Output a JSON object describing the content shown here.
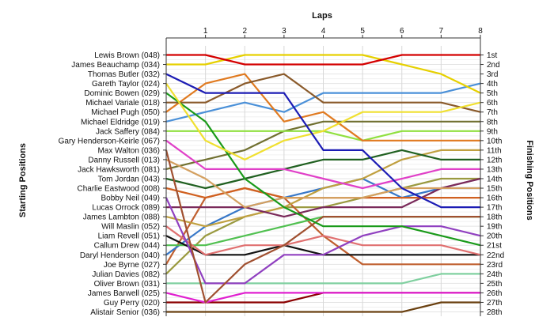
{
  "chart_data": {
    "type": "line",
    "title": "",
    "xlabel": "Laps",
    "ylabel_left": "Starting Positions",
    "ylabel_right": "Finishing Positions",
    "x": [
      0,
      1,
      2,
      3,
      4,
      5,
      6,
      7,
      8
    ],
    "x_tick_labels": [
      "1",
      "2",
      "3",
      "4",
      "5",
      "6",
      "7",
      "8"
    ],
    "finish_labels": [
      "1st",
      "2nd",
      "3rd",
      "4th",
      "5th",
      "6th",
      "7th",
      "8th",
      "9th",
      "10th",
      "11th",
      "12th",
      "13th",
      "14th",
      "15th",
      "16th",
      "17th",
      "18th",
      "19th",
      "20th",
      "21st",
      "22nd",
      "23rd",
      "24th",
      "25th",
      "26th",
      "27th",
      "28th"
    ],
    "y_direction": "position 1 at top",
    "grid": true,
    "series": [
      {
        "name": "Lewis Brown (048)",
        "color": "#d40000",
        "values": [
          1,
          1,
          2,
          2,
          2,
          2,
          1,
          1,
          1
        ]
      },
      {
        "name": "James Beauchamp (034)",
        "color": "#e6d000",
        "values": [
          2,
          2,
          1,
          1,
          1,
          1,
          2,
          3,
          5
        ]
      },
      {
        "name": "Thomas Butler (032)",
        "color": "#1c1cb4",
        "values": [
          3,
          5,
          5,
          5,
          11,
          11,
          15,
          17,
          17
        ]
      },
      {
        "name": "Gareth Taylor (024)",
        "color": "#f0e030",
        "values": [
          4,
          10,
          12,
          10,
          9,
          7,
          7,
          7,
          6
        ]
      },
      {
        "name": "Dominic Bowen (029)",
        "color": "#1a9a1a",
        "values": [
          5,
          8,
          14,
          17,
          19,
          19,
          19,
          20,
          21
        ]
      },
      {
        "name": "Michael Variale (018)",
        "color": "#8a5a2a",
        "values": [
          6,
          6,
          4,
          3,
          6,
          6,
          6,
          6,
          7
        ]
      },
      {
        "name": "Michael Pugh (050)",
        "color": "#e07a20",
        "values": [
          7,
          4,
          3,
          8,
          7,
          10,
          10,
          10,
          10
        ]
      },
      {
        "name": "Michael Eldridge (019)",
        "color": "#4a90d8",
        "values": [
          8,
          7,
          6,
          7,
          5,
          5,
          5,
          5,
          4
        ]
      },
      {
        "name": "Jack Saffery (084)",
        "color": "#90e040",
        "values": [
          9,
          9,
          9,
          9,
          9,
          10,
          9,
          9,
          9
        ]
      },
      {
        "name": "Gary Henderson-Keirle (067)",
        "color": "#e040c8",
        "values": [
          10,
          13,
          13,
          13,
          14,
          15,
          14,
          13,
          13
        ]
      },
      {
        "name": "Max Walton (036)",
        "color": "#a05030",
        "values": [
          11,
          27,
          23,
          21,
          18,
          18,
          18,
          18,
          18
        ]
      },
      {
        "name": "Danny Russell (013)",
        "color": "#d4a060",
        "values": [
          12,
          14,
          17,
          16,
          16,
          16,
          15,
          15,
          15
        ]
      },
      {
        "name": "Jack Hawksworth (081)",
        "color": "#707030",
        "values": [
          13,
          12,
          11,
          9,
          8,
          8,
          8,
          8,
          8
        ]
      },
      {
        "name": "Tom Jordan (043)",
        "color": "#206020",
        "values": [
          14,
          15,
          14,
          13,
          12,
          12,
          11,
          12,
          12
        ]
      },
      {
        "name": "Charlie Eastwood (008)",
        "color": "#d06020",
        "values": [
          15,
          16,
          15,
          16,
          16,
          16,
          16,
          16,
          16
        ]
      },
      {
        "name": "Bobby Neil (049)",
        "color": "#9040c0",
        "values": [
          16,
          25,
          25,
          22,
          22,
          20,
          19,
          19,
          20
        ]
      },
      {
        "name": "Lucas Orrock (089)",
        "color": "#7a2a5a",
        "values": [
          17,
          17,
          17,
          18,
          17,
          17,
          17,
          15,
          14
        ]
      },
      {
        "name": "James Lambton (088)",
        "color": "#c0a040",
        "values": [
          18,
          19,
          18,
          17,
          15,
          14,
          12,
          11,
          11
        ]
      },
      {
        "name": "Will Maslin (052)",
        "color": "#e07070",
        "values": [
          19,
          22,
          21,
          21,
          20,
          21,
          21,
          21,
          22
        ]
      },
      {
        "name": "Liam Revell (051)",
        "color": "#101010",
        "values": [
          20,
          22,
          22,
          21,
          22,
          22,
          22,
          22,
          22
        ]
      },
      {
        "name": "Callum Drew (044)",
        "color": "#50c050",
        "values": [
          21,
          21,
          20,
          19,
          18,
          18,
          18,
          18,
          18
        ]
      },
      {
        "name": "Daryl Henderson (040)",
        "color": "#3878c8",
        "values": [
          22,
          19,
          17,
          16,
          15,
          14,
          16,
          15,
          15
        ]
      },
      {
        "name": "Joe Byrne (027)",
        "color": "#c06030",
        "values": [
          23,
          16,
          15,
          16,
          20,
          23,
          23,
          23,
          23
        ]
      },
      {
        "name": "Julian Davies (082)",
        "color": "#9a9a40",
        "values": [
          24,
          20,
          18,
          17,
          17,
          16,
          15,
          14,
          14
        ]
      },
      {
        "name": "Oliver Brown (031)",
        "color": "#80d0a0",
        "values": [
          25,
          25,
          25,
          25,
          25,
          25,
          25,
          24,
          24
        ]
      },
      {
        "name": "James Barwell (025)",
        "color": "#e020d0",
        "values": [
          26,
          27,
          26,
          26,
          26,
          26,
          26,
          26,
          26
        ]
      },
      {
        "name": "Guy Perry (020)",
        "color": "#8a0000",
        "values": [
          27,
          27,
          27,
          27,
          26,
          26,
          26,
          26,
          26
        ]
      },
      {
        "name": "Alistair Senior (036)",
        "color": "#6a4010",
        "values": [
          28,
          28,
          28,
          28,
          28,
          28,
          28,
          27,
          27
        ]
      }
    ]
  }
}
